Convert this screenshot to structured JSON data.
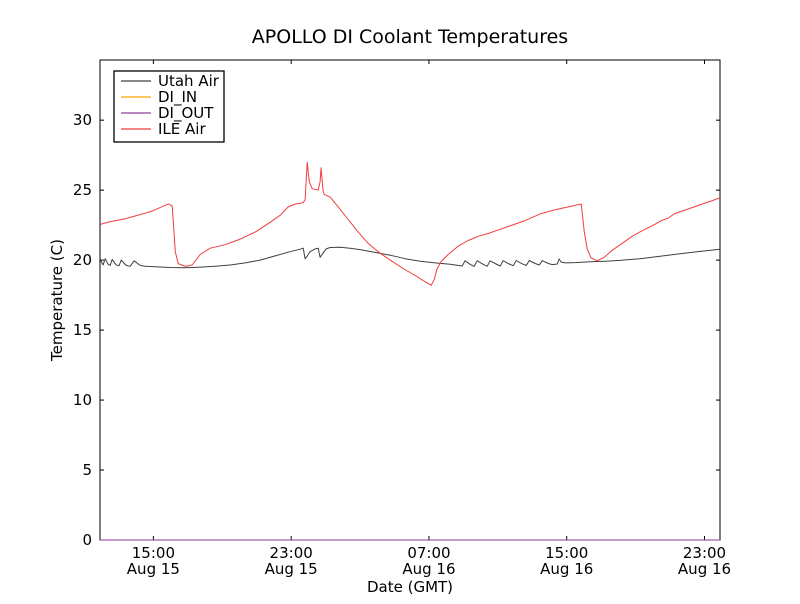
{
  "chart_data": {
    "type": "line",
    "title": "APOLLO DI Coolant Temperatures",
    "xlabel": "Date (GMT)",
    "ylabel": "Temperature (C)",
    "xlim_hours": [
      11.9,
      47.9
    ],
    "ylim": [
      0,
      34.3
    ],
    "yticks": [
      0,
      5,
      10,
      15,
      20,
      25,
      30
    ],
    "xticks": [
      {
        "hour": 15,
        "time": "15:00",
        "date": "Aug 15"
      },
      {
        "hour": 23,
        "time": "23:00",
        "date": "Aug 15"
      },
      {
        "hour": 31,
        "time": "07:00",
        "date": "Aug 16"
      },
      {
        "hour": 39,
        "time": "15:00",
        "date": "Aug 16"
      },
      {
        "hour": 47,
        "time": "23:00",
        "date": "Aug 16"
      }
    ],
    "grid": false,
    "legend_position": "upper left",
    "colors": {
      "frame": "#000000",
      "background": "#ffffff",
      "utah_air": "#404040",
      "di_in": "#ffa500",
      "di_out": "#8e3a9c",
      "ile_air": "#f03c3c"
    },
    "series": [
      {
        "name": "Utah Air",
        "color": "#404040",
        "points": [
          [
            11.91,
            20.1
          ],
          [
            11.97,
            19.9
          ],
          [
            12.08,
            19.65
          ],
          [
            12.2,
            20.1
          ],
          [
            12.37,
            19.7
          ],
          [
            12.49,
            19.62
          ],
          [
            12.61,
            20.05
          ],
          [
            12.84,
            19.66
          ],
          [
            13.01,
            19.6
          ],
          [
            13.13,
            20.0
          ],
          [
            13.42,
            19.62
          ],
          [
            13.65,
            19.56
          ],
          [
            13.88,
            19.95
          ],
          [
            14.23,
            19.62
          ],
          [
            14.52,
            19.56
          ],
          [
            15.1,
            19.52
          ],
          [
            15.97,
            19.47
          ],
          [
            16.85,
            19.46
          ],
          [
            17.72,
            19.5
          ],
          [
            18.59,
            19.56
          ],
          [
            19.46,
            19.65
          ],
          [
            20.33,
            19.8
          ],
          [
            21.2,
            20.0
          ],
          [
            22.07,
            20.3
          ],
          [
            22.94,
            20.6
          ],
          [
            23.52,
            20.78
          ],
          [
            23.7,
            20.85
          ],
          [
            23.81,
            20.1
          ],
          [
            23.93,
            20.3
          ],
          [
            24.1,
            20.6
          ],
          [
            24.39,
            20.8
          ],
          [
            24.57,
            20.85
          ],
          [
            24.68,
            20.2
          ],
          [
            24.85,
            20.5
          ],
          [
            25.03,
            20.8
          ],
          [
            25.26,
            20.9
          ],
          [
            25.84,
            20.92
          ],
          [
            26.42,
            20.85
          ],
          [
            27.0,
            20.75
          ],
          [
            27.87,
            20.55
          ],
          [
            28.75,
            20.35
          ],
          [
            29.62,
            20.1
          ],
          [
            30.49,
            19.92
          ],
          [
            31.36,
            19.8
          ],
          [
            32.23,
            19.7
          ],
          [
            32.93,
            19.58
          ],
          [
            33.1,
            19.95
          ],
          [
            33.39,
            19.7
          ],
          [
            33.62,
            19.55
          ],
          [
            33.8,
            19.95
          ],
          [
            34.15,
            19.7
          ],
          [
            34.38,
            19.56
          ],
          [
            34.55,
            19.95
          ],
          [
            34.9,
            19.72
          ],
          [
            35.14,
            19.58
          ],
          [
            35.31,
            19.96
          ],
          [
            35.66,
            19.72
          ],
          [
            35.89,
            19.6
          ],
          [
            36.07,
            19.97
          ],
          [
            36.41,
            19.74
          ],
          [
            36.65,
            19.62
          ],
          [
            36.82,
            19.97
          ],
          [
            37.17,
            19.76
          ],
          [
            37.4,
            19.65
          ],
          [
            37.58,
            19.96
          ],
          [
            37.93,
            19.76
          ],
          [
            38.16,
            19.68
          ],
          [
            38.45,
            19.72
          ],
          [
            38.56,
            20.08
          ],
          [
            38.68,
            19.86
          ],
          [
            38.91,
            19.8
          ],
          [
            39.49,
            19.82
          ],
          [
            40.36,
            19.88
          ],
          [
            41.23,
            19.92
          ],
          [
            42.1,
            19.98
          ],
          [
            43.26,
            20.1
          ],
          [
            44.42,
            20.28
          ],
          [
            45.58,
            20.45
          ],
          [
            46.75,
            20.62
          ],
          [
            47.9,
            20.78
          ]
        ]
      },
      {
        "name": "DI_IN",
        "color": "#ffa500",
        "points": [
          [
            11.9,
            0
          ],
          [
            47.9,
            0
          ]
        ]
      },
      {
        "name": "DI_OUT",
        "color": "#8e3a9c",
        "points": [
          [
            11.9,
            0
          ],
          [
            47.9,
            0
          ]
        ]
      },
      {
        "name": "ILE Air",
        "color": "#f03c3c",
        "points": [
          [
            11.91,
            22.55
          ],
          [
            12.49,
            22.75
          ],
          [
            12.95,
            22.85
          ],
          [
            13.36,
            22.95
          ],
          [
            13.94,
            23.15
          ],
          [
            14.52,
            23.35
          ],
          [
            14.93,
            23.5
          ],
          [
            15.39,
            23.75
          ],
          [
            15.74,
            23.95
          ],
          [
            15.91,
            24.0
          ],
          [
            16.09,
            23.85
          ],
          [
            16.27,
            20.6
          ],
          [
            16.44,
            19.75
          ],
          [
            16.85,
            19.55
          ],
          [
            17.25,
            19.65
          ],
          [
            17.72,
            20.4
          ],
          [
            18.3,
            20.85
          ],
          [
            19.17,
            21.1
          ],
          [
            20.04,
            21.5
          ],
          [
            20.91,
            22.0
          ],
          [
            21.78,
            22.7
          ],
          [
            22.36,
            23.2
          ],
          [
            22.83,
            23.8
          ],
          [
            23.23,
            24.0
          ],
          [
            23.7,
            24.1
          ],
          [
            23.81,
            24.3
          ],
          [
            23.93,
            27.0
          ],
          [
            24.05,
            25.6
          ],
          [
            24.22,
            25.1
          ],
          [
            24.57,
            25.0
          ],
          [
            24.68,
            25.6
          ],
          [
            24.74,
            26.6
          ],
          [
            24.85,
            25.0
          ],
          [
            24.91,
            24.7
          ],
          [
            25.26,
            24.5
          ],
          [
            25.73,
            23.8
          ],
          [
            26.31,
            22.9
          ],
          [
            26.89,
            22.0
          ],
          [
            27.47,
            21.2
          ],
          [
            28.05,
            20.6
          ],
          [
            28.75,
            20.0
          ],
          [
            29.5,
            19.4
          ],
          [
            30.2,
            18.9
          ],
          [
            30.78,
            18.45
          ],
          [
            31.13,
            18.2
          ],
          [
            31.3,
            18.6
          ],
          [
            31.48,
            19.4
          ],
          [
            31.71,
            19.9
          ],
          [
            32.12,
            20.4
          ],
          [
            32.7,
            21.0
          ],
          [
            33.28,
            21.4
          ],
          [
            33.86,
            21.7
          ],
          [
            34.44,
            21.9
          ],
          [
            35.14,
            22.2
          ],
          [
            35.83,
            22.5
          ],
          [
            36.53,
            22.8
          ],
          [
            37.46,
            23.3
          ],
          [
            38.33,
            23.6
          ],
          [
            39.09,
            23.8
          ],
          [
            39.61,
            23.95
          ],
          [
            39.84,
            24.0
          ],
          [
            40.02,
            22.0
          ],
          [
            40.19,
            20.8
          ],
          [
            40.42,
            20.15
          ],
          [
            40.77,
            19.95
          ],
          [
            41.18,
            20.2
          ],
          [
            41.64,
            20.7
          ],
          [
            42.22,
            21.2
          ],
          [
            42.8,
            21.7
          ],
          [
            43.38,
            22.1
          ],
          [
            43.96,
            22.45
          ],
          [
            44.54,
            22.85
          ],
          [
            44.89,
            23.0
          ],
          [
            45.24,
            23.3
          ],
          [
            45.82,
            23.55
          ],
          [
            46.4,
            23.8
          ],
          [
            46.98,
            24.05
          ],
          [
            47.45,
            24.25
          ],
          [
            47.9,
            24.45
          ]
        ]
      }
    ]
  }
}
